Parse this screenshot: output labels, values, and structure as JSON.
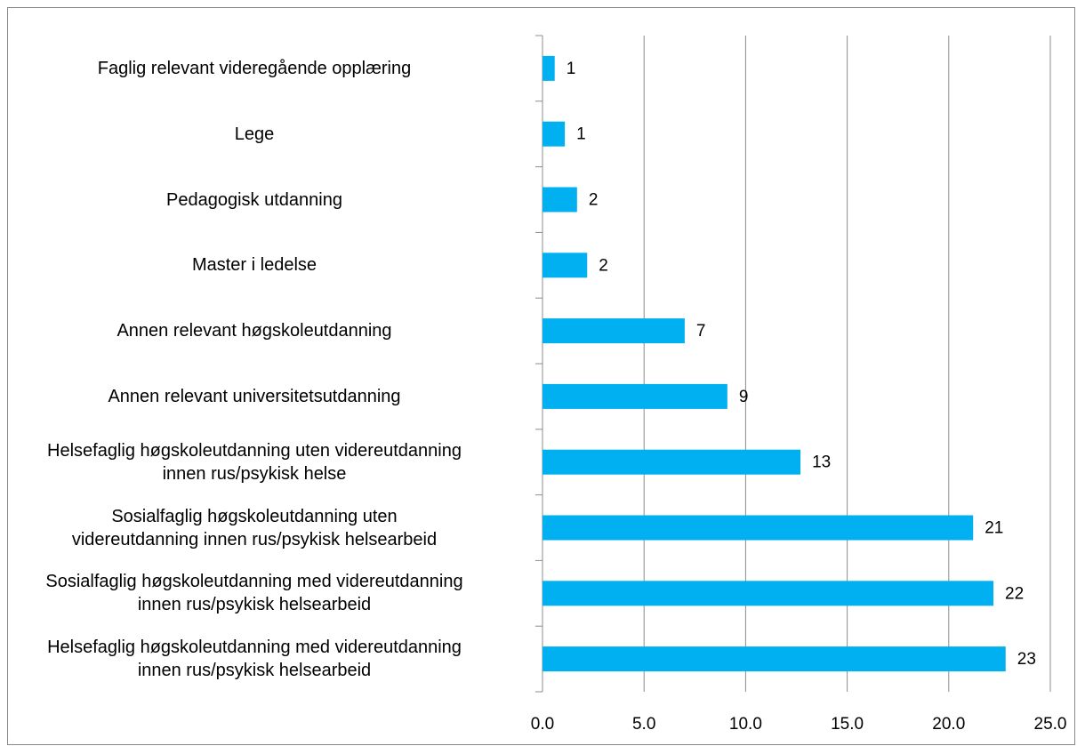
{
  "chart_data": {
    "type": "barh",
    "categories": [
      "Faglig relevant videregående opplæring",
      "Lege",
      "Pedagogisk utdanning",
      "Master i ledelse",
      "Annen relevant høgskoleutdanning",
      "Annen relevant universitetsutdanning",
      "Helsefaglig høgskoleutdanning uten videreutdanning\ninnen rus/psykisk helse",
      "Sosialfaglig høgskoleutdanning uten\nvidereutdanning innen rus/psykisk helsearbeid",
      "Sosialfaglig høgskoleutdanning med videreutdanning\ninnen rus/psykisk helsearbeid",
      "Helsefaglig høgskoleutdanning med videreutdanning\ninnen rus/psykisk helsearbeid"
    ],
    "values": [
      0.6,
      1.1,
      1.7,
      2.2,
      7.0,
      9.1,
      12.7,
      21.2,
      22.2,
      22.8
    ],
    "value_labels": [
      "1",
      "1",
      "2",
      "2",
      "7",
      "9",
      "13",
      "21",
      "22",
      "23"
    ],
    "color": "#00b0f0",
    "xlim": [
      0,
      25
    ],
    "xticks": [
      {
        "value": 0,
        "label": "0.0"
      },
      {
        "value": 5,
        "label": "5.0"
      },
      {
        "value": 10,
        "label": "10.0"
      },
      {
        "value": 15,
        "label": "15.0"
      },
      {
        "value": 20,
        "label": "20.0"
      },
      {
        "value": 25,
        "label": "25.0"
      }
    ],
    "grid": true
  }
}
